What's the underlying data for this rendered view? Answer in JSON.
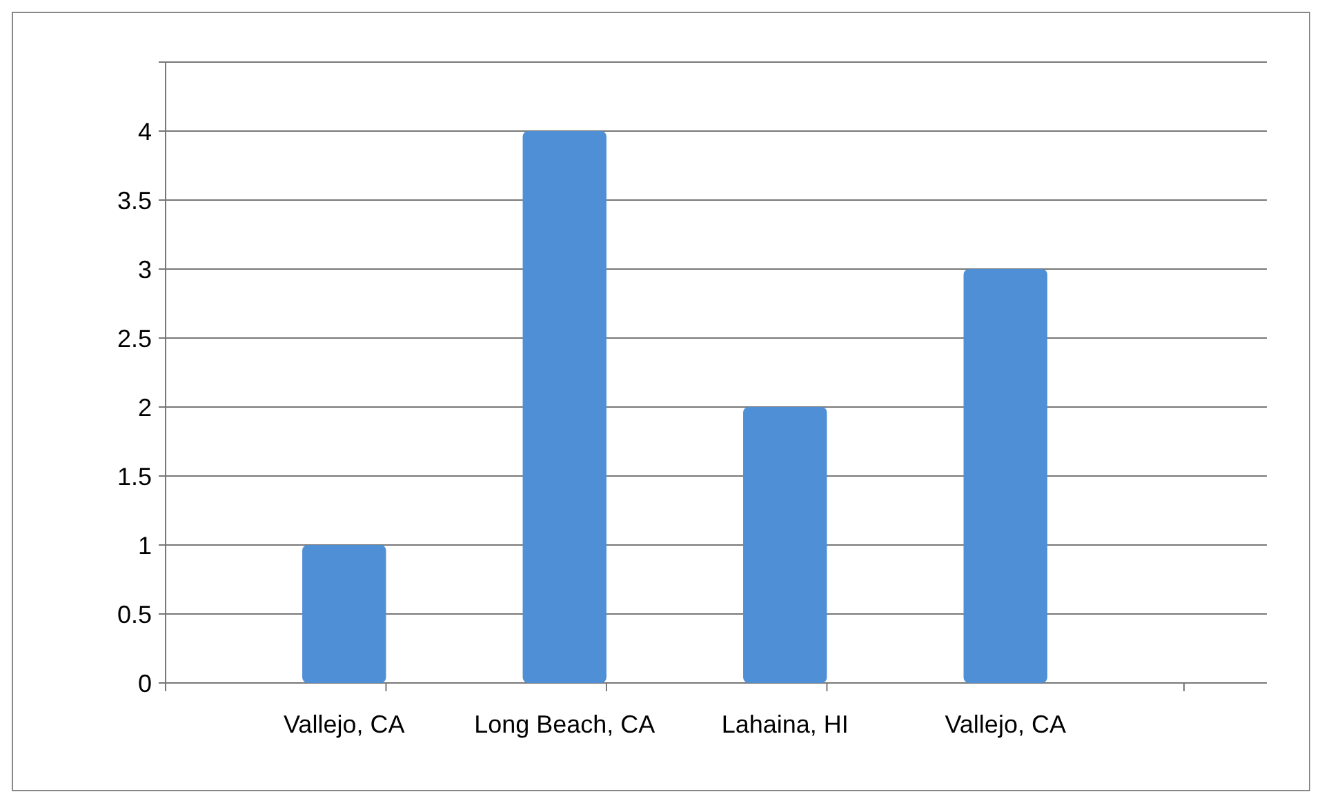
{
  "chart_data": {
    "type": "bar",
    "categories": [
      "Vallejo, CA",
      "Long Beach, CA",
      "Lahaina, HI",
      "Vallejo, CA"
    ],
    "values": [
      1,
      4,
      2,
      3
    ],
    "color": "#4f8fd6",
    "ylim": [
      0,
      4.5
    ],
    "yticks": [
      0,
      0.5,
      1,
      1.5,
      2,
      2.5,
      3,
      3.5,
      4,
      {
        "value": 4.5,
        "label": null
      }
    ],
    "grid": "y"
  }
}
